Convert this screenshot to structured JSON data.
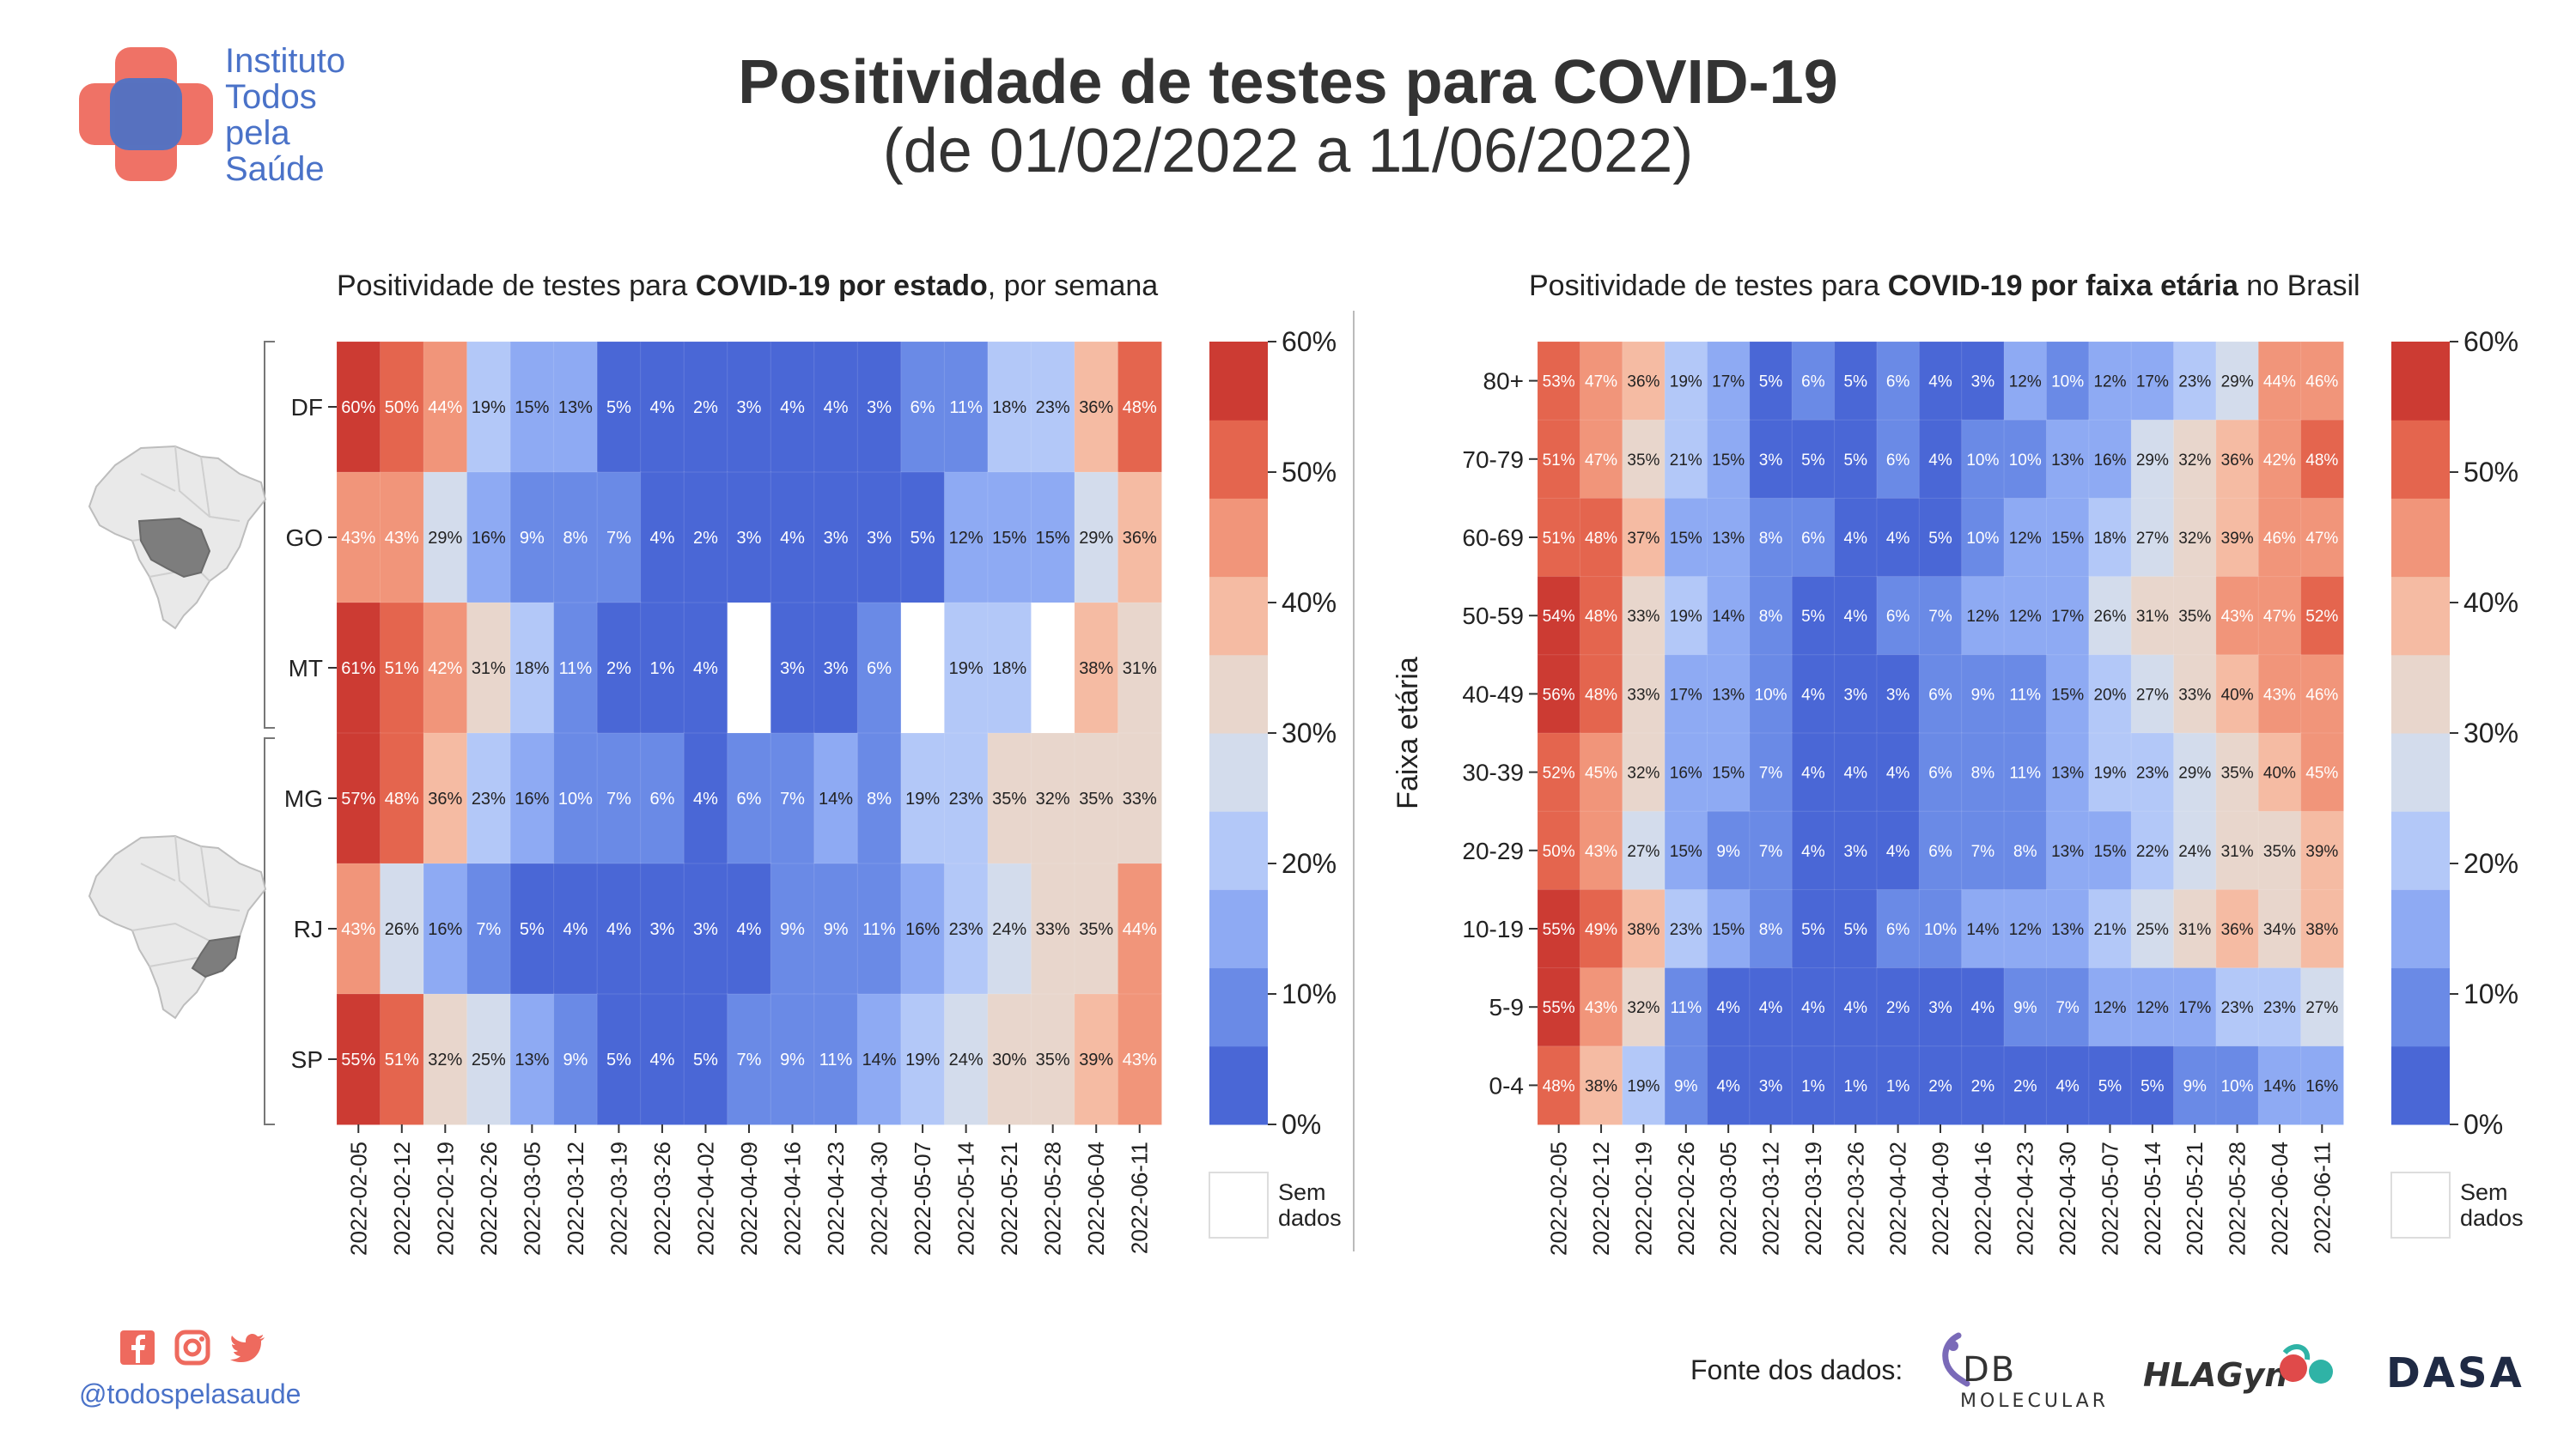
{
  "header": {
    "title": "Positividade de testes para COVID-19",
    "subtitle": "(de 01/02/2022 a 11/06/2022)",
    "logo_lines": [
      "Instituto",
      "Todos",
      "pela",
      "Saúde"
    ]
  },
  "footer": {
    "social_icons": [
      "facebook-icon",
      "instagram-icon",
      "twitter-icon"
    ],
    "handle": "@todospelasaude",
    "source_label": "Fonte dos dados:",
    "source_logos": [
      "DB",
      "MOLECULAR",
      "HLAGyn",
      "DASA"
    ]
  },
  "colors": {
    "scale": [
      "#4a67d6",
      "#6a8ae6",
      "#8eaaf3",
      "#b3c8f8",
      "#d3dcec",
      "#e8d6cc",
      "#f5bba3",
      "#f1957a",
      "#e4654e",
      "#cc3b33"
    ],
    "no_data": "#ffffff",
    "text_light": "#ffffff",
    "text_dark": "#222222",
    "logo_blue": "#4a72c8",
    "logo_red": "#ee6a5e"
  },
  "chart_data": [
    {
      "type": "heatmap",
      "title_parts": [
        "Positividade de testes para ",
        "COVID-19 por estado",
        ", por semana"
      ],
      "x": [
        "2022-02-05",
        "2022-02-12",
        "2022-02-19",
        "2022-02-26",
        "2022-03-05",
        "2022-03-12",
        "2022-03-19",
        "2022-03-26",
        "2022-04-02",
        "2022-04-09",
        "2022-04-16",
        "2022-04-23",
        "2022-04-30",
        "2022-05-07",
        "2022-05-14",
        "2022-05-21",
        "2022-05-28",
        "2022-06-04",
        "2022-06-11"
      ],
      "y": [
        "DF",
        "GO",
        "MT",
        "MG",
        "RJ",
        "SP"
      ],
      "values": [
        [
          60,
          50,
          44,
          19,
          15,
          13,
          5,
          4,
          2,
          3,
          4,
          4,
          3,
          6,
          11,
          18,
          23,
          36,
          48
        ],
        [
          43,
          43,
          29,
          16,
          9,
          8,
          7,
          4,
          2,
          3,
          4,
          3,
          3,
          5,
          12,
          15,
          15,
          29,
          36
        ],
        [
          61,
          51,
          42,
          31,
          18,
          11,
          2,
          1,
          4,
          null,
          3,
          3,
          6,
          null,
          19,
          18,
          null,
          38,
          31
        ],
        [
          57,
          48,
          36,
          23,
          16,
          10,
          7,
          6,
          4,
          6,
          7,
          14,
          8,
          19,
          23,
          35,
          32,
          35,
          33
        ],
        [
          43,
          26,
          16,
          7,
          5,
          4,
          4,
          3,
          3,
          4,
          9,
          9,
          11,
          16,
          23,
          24,
          33,
          35,
          44
        ],
        [
          55,
          51,
          32,
          25,
          13,
          9,
          5,
          4,
          5,
          7,
          9,
          11,
          14,
          19,
          24,
          30,
          35,
          39,
          43
        ]
      ],
      "colorbar": {
        "ticks": [
          "60%",
          "50%",
          "40%",
          "30%",
          "20%",
          "10%",
          "0%"
        ],
        "range": [
          0,
          60
        ],
        "no_data_label": [
          "Sem",
          "dados"
        ]
      },
      "region_maps": [
        "midwest-map-icon",
        "southeast-map-icon"
      ]
    },
    {
      "type": "heatmap",
      "title_parts": [
        "Positividade de testes para ",
        "COVID-19 por faixa etária",
        " no Brasil"
      ],
      "ylabel": "Faixa etária",
      "x": [
        "2022-02-05",
        "2022-02-12",
        "2022-02-19",
        "2022-02-26",
        "2022-03-05",
        "2022-03-12",
        "2022-03-19",
        "2022-03-26",
        "2022-04-02",
        "2022-04-09",
        "2022-04-16",
        "2022-04-23",
        "2022-04-30",
        "2022-05-07",
        "2022-05-14",
        "2022-05-21",
        "2022-05-28",
        "2022-06-04",
        "2022-06-11"
      ],
      "y": [
        "80+",
        "70-79",
        "60-69",
        "50-59",
        "40-49",
        "30-39",
        "20-29",
        "10-19",
        "5-9",
        "0-4"
      ],
      "values": [
        [
          53,
          47,
          36,
          19,
          17,
          5,
          6,
          5,
          6,
          4,
          3,
          12,
          10,
          12,
          17,
          23,
          29,
          44,
          46
        ],
        [
          51,
          47,
          35,
          21,
          15,
          3,
          5,
          5,
          6,
          4,
          10,
          10,
          13,
          16,
          29,
          32,
          36,
          42,
          48
        ],
        [
          51,
          48,
          37,
          15,
          13,
          8,
          6,
          4,
          4,
          5,
          10,
          12,
          15,
          18,
          27,
          32,
          39,
          46,
          47
        ],
        [
          54,
          48,
          33,
          19,
          14,
          8,
          5,
          4,
          6,
          7,
          12,
          12,
          17,
          26,
          31,
          35,
          43,
          47,
          52
        ],
        [
          56,
          48,
          33,
          17,
          13,
          10,
          4,
          3,
          3,
          6,
          9,
          11,
          15,
          20,
          27,
          33,
          40,
          43,
          46
        ],
        [
          52,
          45,
          32,
          16,
          15,
          7,
          4,
          4,
          4,
          6,
          8,
          11,
          13,
          19,
          23,
          29,
          35,
          40,
          45
        ],
        [
          50,
          43,
          27,
          15,
          9,
          7,
          4,
          3,
          4,
          6,
          7,
          8,
          13,
          15,
          22,
          24,
          31,
          35,
          39
        ],
        [
          55,
          49,
          38,
          23,
          15,
          8,
          5,
          5,
          6,
          10,
          14,
          12,
          13,
          21,
          25,
          31,
          36,
          34,
          38
        ],
        [
          55,
          43,
          32,
          11,
          4,
          4,
          4,
          4,
          2,
          3,
          4,
          9,
          7,
          12,
          12,
          17,
          23,
          23,
          27
        ],
        [
          48,
          38,
          19,
          9,
          4,
          3,
          1,
          1,
          1,
          2,
          2,
          2,
          4,
          5,
          5,
          9,
          10,
          14,
          16
        ]
      ],
      "colorbar": {
        "ticks": [
          "60%",
          "50%",
          "40%",
          "30%",
          "20%",
          "10%",
          "0%"
        ],
        "range": [
          0,
          60
        ],
        "no_data_label": [
          "Sem",
          "dados"
        ]
      }
    }
  ]
}
